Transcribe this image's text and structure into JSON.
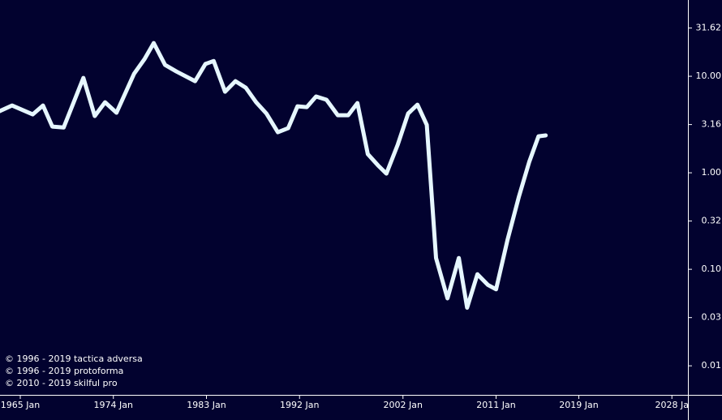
{
  "chart_data": {
    "type": "line",
    "log_scale_y": true,
    "background": "#02022f",
    "x": [
      1963.0,
      1964.2,
      1966.2,
      1967.2,
      1968.1,
      1969.2,
      1971.1,
      1972.2,
      1973.2,
      1974.3,
      1976.0,
      1977.0,
      1977.9,
      1979.0,
      1980.1,
      1981.9,
      1982.9,
      1983.7,
      1984.8,
      1985.8,
      1986.8,
      1987.8,
      1988.8,
      1989.9,
      1990.9,
      1991.8,
      1992.7,
      1993.6,
      1994.6,
      1995.7,
      1996.7,
      1997.6,
      1998.6,
      1999.6,
      2000.4,
      2001.5,
      2002.5,
      2003.4,
      2004.3,
      2005.2,
      2006.3,
      2007.4,
      2008.2,
      2009.2,
      2010.2,
      2011.0,
      2012.1,
      2013.2,
      2014.2,
      2015.1,
      2015.8
    ],
    "series": [
      {
        "color": "#e6f7ff",
        "values": [
          4.35,
          4.98,
          4.03,
          4.98,
          3.01,
          2.95,
          9.62,
          3.87,
          5.38,
          4.19,
          10.6,
          15.0,
          22.1,
          13.1,
          11.2,
          8.9,
          13.4,
          14.4,
          6.92,
          8.9,
          7.63,
          5.38,
          4.11,
          2.63,
          2.9,
          4.89,
          4.79,
          6.17,
          5.71,
          3.95,
          3.95,
          5.28,
          1.56,
          1.19,
          0.98,
          1.97,
          4.11,
          5.08,
          3.13,
          0.131,
          0.05,
          0.131,
          0.04,
          0.089,
          0.069,
          0.062,
          0.2,
          0.56,
          1.29,
          2.39,
          2.44
        ]
      }
    ],
    "xlim": [
      1963.04,
      2029.55
    ],
    "ylim": [
      61.7,
      0.005
    ],
    "xticks": [
      {
        "value": 1965,
        "label": "1965 Jan"
      },
      {
        "value": 1974,
        "label": "1974 Jan"
      },
      {
        "value": 1983,
        "label": "1983 Jan"
      },
      {
        "value": 1992,
        "label": "1992 Jan"
      },
      {
        "value": 2002,
        "label": "2002 Jan"
      },
      {
        "value": 2011,
        "label": "2011 Jan"
      },
      {
        "value": 2019,
        "label": "2019 Jan"
      },
      {
        "value": 2028,
        "label": "2028 Ja"
      }
    ],
    "yticks": [
      31.62,
      {
        "value": 10,
        "label": "10.00"
      },
      3.16,
      {
        "value": 1,
        "label": "1.00"
      },
      {
        "value": 0.3162,
        "label": "0.32"
      },
      {
        "value": 0.1,
        "label": "0.10"
      },
      {
        "value": 0.0316,
        "label": "0.03"
      },
      {
        "value": 0.01,
        "label": "0.01"
      }
    ],
    "credits": [
      "© 1996 - 2019 tactica adversa",
      "© 1996 - 2019 protoforma",
      "© 2010 - 2019 skilful pro"
    ]
  }
}
